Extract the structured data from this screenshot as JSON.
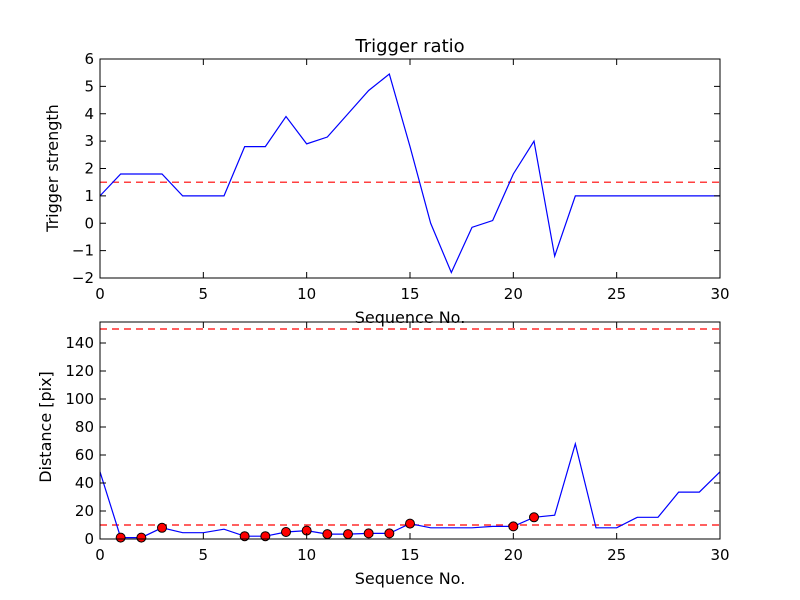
{
  "colors": {
    "line": "#0000ff",
    "threshold": "#ff0000",
    "marker_fill": "#ff0000",
    "marker_edge": "#000000"
  },
  "chart_data": [
    {
      "type": "line",
      "title": "Trigger ratio",
      "xlabel": "Sequence No.",
      "ylabel": "Trigger strength",
      "xlim": [
        0,
        30
      ],
      "ylim": [
        -2,
        6
      ],
      "xticks": [
        0,
        5,
        10,
        15,
        20,
        25,
        30
      ],
      "yticks": [
        -2,
        -1,
        0,
        1,
        2,
        3,
        4,
        5,
        6
      ],
      "xtick_labels": [
        "0",
        "5",
        "10",
        "15",
        "20",
        "25",
        "30"
      ],
      "ytick_labels": [
        "−2",
        "−1",
        "0",
        "1",
        "2",
        "3",
        "4",
        "5",
        "6"
      ],
      "x": [
        0,
        1,
        2,
        3,
        4,
        5,
        6,
        7,
        8,
        9,
        10,
        11,
        12,
        13,
        14,
        15,
        16,
        17,
        18,
        19,
        20,
        21,
        22,
        23,
        24,
        25,
        26,
        27,
        28,
        29,
        30
      ],
      "y": [
        1.0,
        1.8,
        1.8,
        1.8,
        1.0,
        1.0,
        1.0,
        2.8,
        2.8,
        3.9,
        2.9,
        3.15,
        4.0,
        4.85,
        5.45,
        2.8,
        0.0,
        -1.8,
        -0.15,
        0.1,
        1.8,
        3.0,
        -1.2,
        1.0,
        1.0,
        1.0,
        1.0,
        1.0,
        1.0,
        1.0,
        1.0
      ],
      "threshold": 1.5,
      "grid": false
    },
    {
      "type": "line",
      "title": "",
      "xlabel": "Sequence No.",
      "ylabel": "Distance [pix]",
      "xlim": [
        0,
        30
      ],
      "ylim": [
        0,
        155
      ],
      "xticks": [
        0,
        5,
        10,
        15,
        20,
        25,
        30
      ],
      "yticks": [
        0,
        20,
        40,
        60,
        80,
        100,
        120,
        140
      ],
      "xtick_labels": [
        "0",
        "5",
        "10",
        "15",
        "20",
        "25",
        "30"
      ],
      "ytick_labels": [
        "0",
        "20",
        "40",
        "60",
        "80",
        "100",
        "120",
        "140"
      ],
      "x": [
        0,
        1,
        2,
        3,
        4,
        5,
        6,
        7,
        8,
        9,
        10,
        11,
        12,
        13,
        14,
        15,
        16,
        17,
        18,
        19,
        20,
        21,
        22,
        23,
        24,
        25,
        26,
        27,
        28,
        29,
        30
      ],
      "y": [
        48,
        1,
        1,
        8,
        4.5,
        4.5,
        7,
        2,
        2,
        5,
        6,
        3.5,
        3.5,
        4,
        4,
        11,
        8,
        8,
        8,
        9,
        9,
        15.5,
        17,
        68,
        8,
        8,
        15.5,
        15.5,
        33.5,
        33.5,
        48
      ],
      "markers": {
        "x": [
          1,
          2,
          3,
          7,
          8,
          9,
          10,
          11,
          12,
          13,
          14,
          15,
          20,
          21
        ],
        "y": [
          1,
          1,
          8,
          2,
          2,
          5,
          6,
          3.5,
          3.5,
          4,
          4,
          11,
          9,
          15.5
        ]
      },
      "thresholds": [
        10,
        150
      ],
      "grid": false
    }
  ]
}
